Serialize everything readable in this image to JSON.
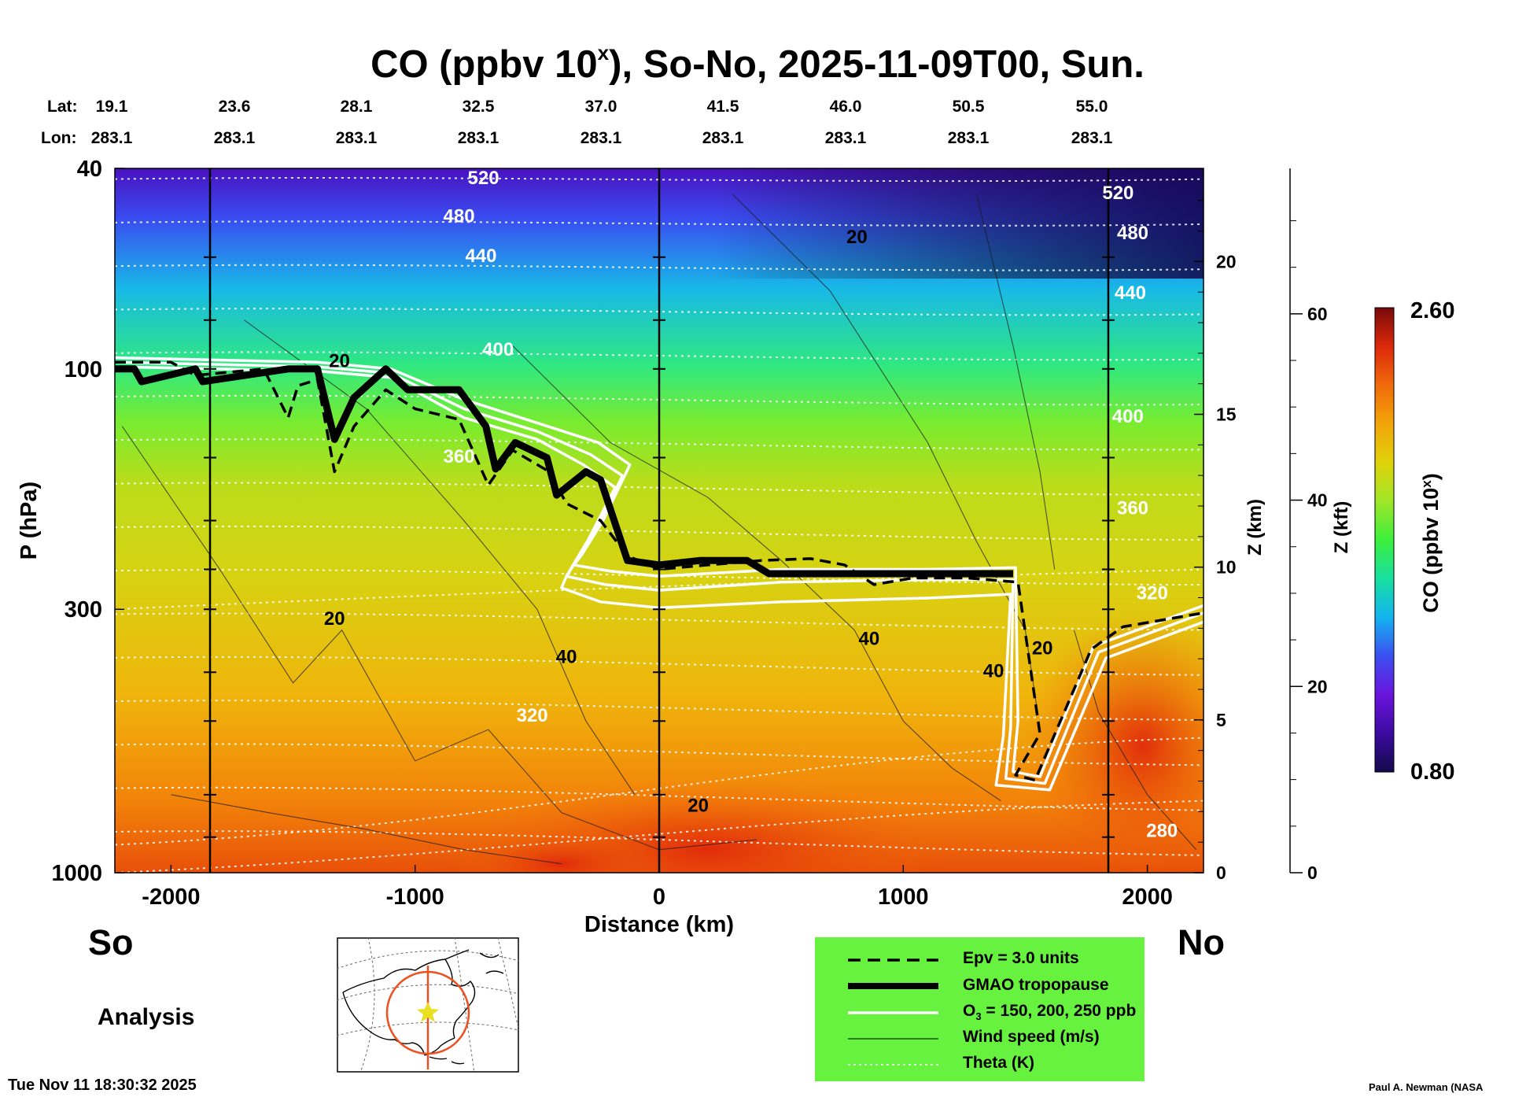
{
  "chart_data": {
    "type": "heatmap",
    "title": "CO (ppbv 10",
    "title_superscript": "x",
    "title_suffix": "), So-No, 2025-11-09T00, Sun.",
    "xlabel": "Distance (km)",
    "ylabel": "P (hPa)",
    "xlim": [
      -2230,
      2230
    ],
    "x_ticks": [
      "-2000",
      "-1000",
      "0",
      "1000",
      "2000"
    ],
    "x_tick_values": [
      -2000,
      -1000,
      0,
      1000,
      2000
    ],
    "y_ticks": [
      "40",
      "100",
      "300",
      "1000"
    ],
    "y_tick_values": [
      40,
      100,
      300,
      1000
    ],
    "z_km_label": "Z (km)",
    "z_km_ticks": [
      "0",
      "5",
      "10",
      "15",
      "20"
    ],
    "z_kft_label": "Z (kft)",
    "z_kft_ticks": [
      "0",
      "20",
      "40",
      "60"
    ],
    "lat_label": "Lat:",
    "lon_label": "Lon:",
    "lat_values": [
      "19.1",
      "23.6",
      "28.1",
      "32.5",
      "37.0",
      "41.5",
      "46.0",
      "50.5",
      "55.0"
    ],
    "lon_values": [
      "283.1",
      "283.1",
      "283.1",
      "283.1",
      "283.1",
      "283.1",
      "283.1",
      "283.1",
      "283.1"
    ],
    "colorbar": {
      "label": "CO (ppbv 10",
      "label_sup": "x",
      "label_suffix": ")",
      "max_label": "2.60",
      "min_label": "0.80",
      "range": [
        0.8,
        2.6
      ]
    },
    "theta_labels": [
      {
        "text": "520",
        "x": -720,
        "p": 42
      },
      {
        "text": "480",
        "x": -820,
        "p": 50
      },
      {
        "text": "440",
        "x": -730,
        "p": 60
      },
      {
        "text": "400",
        "x": -660,
        "p": 92
      },
      {
        "text": "360",
        "x": -820,
        "p": 150
      },
      {
        "text": "320",
        "x": -520,
        "p": 490
      },
      {
        "text": "520",
        "x": 1880,
        "p": 45
      },
      {
        "text": "480",
        "x": 1940,
        "p": 54
      },
      {
        "text": "440",
        "x": 1930,
        "p": 71
      },
      {
        "text": "400",
        "x": 1920,
        "p": 125
      },
      {
        "text": "360",
        "x": 1940,
        "p": 190
      },
      {
        "text": "320",
        "x": 2020,
        "p": 280
      },
      {
        "text": "280",
        "x": 2060,
        "p": 830
      }
    ],
    "wind_labels": [
      {
        "text": "20",
        "x": -1310,
        "p": 97
      },
      {
        "text": "20",
        "x": -1330,
        "p": 315
      },
      {
        "text": "40",
        "x": -380,
        "p": 375
      },
      {
        "text": "20",
        "x": 160,
        "p": 740
      },
      {
        "text": "20",
        "x": 810,
        "p": 55
      },
      {
        "text": "40",
        "x": 860,
        "p": 345
      },
      {
        "text": "40",
        "x": 1370,
        "p": 400
      },
      {
        "text": "20",
        "x": 1570,
        "p": 360
      }
    ],
    "series": [
      {
        "name": "GMAO tropopause",
        "x": [
          -2230,
          -2150,
          -2120,
          -1900,
          -1870,
          -1520,
          -1400,
          -1330,
          -1250,
          -1120,
          -1030,
          -820,
          -710,
          -670,
          -590,
          -460,
          -420,
          -300,
          -240,
          -130,
          0,
          170,
          360,
          450,
          490,
          1450
        ],
        "p": [
          100,
          100,
          106,
          100,
          106,
          100,
          100,
          138,
          114,
          100,
          110,
          110,
          130,
          158,
          140,
          150,
          178,
          160,
          166,
          240,
          245,
          240,
          240,
          255,
          255,
          255
        ]
      },
      {
        "name": "Epv = 3.0 units",
        "x": [
          -2230,
          -2000,
          -1900,
          -1620,
          -1520,
          -1480,
          -1400,
          -1330,
          -1250,
          -1120,
          -1000,
          -820,
          -700,
          -600,
          -450,
          -380,
          -240,
          -130,
          0,
          200,
          420,
          620,
          760,
          880,
          1040,
          1260,
          1470,
          1560,
          1460,
          1540,
          1770,
          1900,
          2230
        ],
        "p": [
          97,
          97,
          103,
          100,
          125,
          108,
          105,
          160,
          130,
          110,
          120,
          126,
          170,
          145,
          160,
          185,
          200,
          235,
          250,
          245,
          240,
          238,
          245,
          268,
          260,
          260,
          265,
          530,
          640,
          655,
          360,
          325,
          305
        ]
      },
      {
        "name": "O3 = 150 ppb",
        "x": [
          -2230,
          -1400,
          -1100,
          -800,
          -500,
          -250,
          -120,
          -230,
          -320,
          -350,
          -200,
          0,
          500,
          1100,
          1460,
          1470,
          1450,
          1560,
          1780,
          2230
        ],
        "p": [
          95,
          97,
          100,
          115,
          128,
          140,
          155,
          200,
          235,
          245,
          252,
          258,
          250,
          250,
          248,
          500,
          630,
          645,
          355,
          295
        ]
      },
      {
        "name": "O3 = 200 ppb",
        "x": [
          -2230,
          -1400,
          -1100,
          -800,
          -500,
          -280,
          -150,
          -260,
          -350,
          -380,
          -220,
          0,
          500,
          1100,
          1450,
          1440,
          1420,
          1580,
          1800,
          2230
        ],
        "p": [
          97,
          99,
          102,
          120,
          133,
          148,
          163,
          208,
          245,
          258,
          268,
          275,
          265,
          262,
          262,
          515,
          650,
          665,
          365,
          305
        ]
      },
      {
        "name": "O3 = 250 ppb",
        "x": [
          -2230,
          -1400,
          -1100,
          -800,
          -500,
          -310,
          -180,
          -290,
          -380,
          -400,
          -240,
          0,
          500,
          1100,
          1440,
          1410,
          1380,
          1600,
          1830,
          2230
        ],
        "p": [
          99,
          101,
          104,
          125,
          138,
          155,
          172,
          218,
          258,
          272,
          290,
          298,
          290,
          285,
          280,
          535,
          670,
          685,
          375,
          318
        ]
      }
    ]
  },
  "footer": {
    "so": "So",
    "no": "No",
    "analysis": "Analysis",
    "timestamp": "Tue Nov 11 18:30:32 2025",
    "credit": "Paul A. Newman (NASA"
  },
  "legend": {
    "items": [
      {
        "label": "Epv = 3.0 units"
      },
      {
        "label": "GMAO tropopause"
      },
      {
        "label": "O",
        "sub": "3",
        "suffix": " = 150, 200, 250 ppb"
      },
      {
        "label": "Wind speed (m/s)"
      },
      {
        "label": "Theta (K)"
      }
    ]
  },
  "colors": {
    "legend_bg": "#66f23e",
    "co_stops": [
      "#140a4a",
      "#3c0aa0",
      "#6a14dc",
      "#3a50f0",
      "#14b4f0",
      "#18e0a0",
      "#3cf03c",
      "#a0e628",
      "#e0d20a",
      "#f2a50a",
      "#f06a0a",
      "#dc280a",
      "#780a0a"
    ]
  }
}
